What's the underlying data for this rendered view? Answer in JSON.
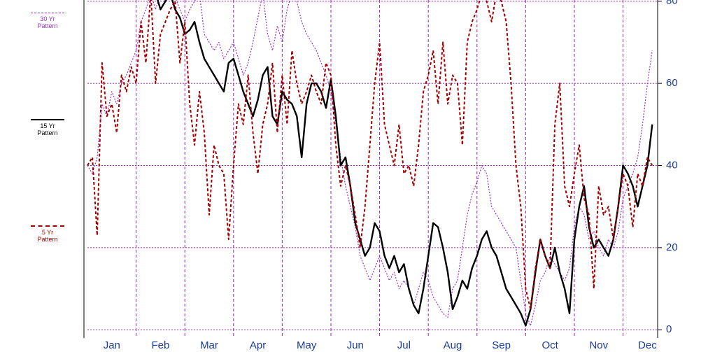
{
  "chart_data": {
    "type": "line",
    "x": [
      0,
      0.1,
      0.2,
      0.3,
      0.4,
      0.5,
      0.6,
      0.7,
      0.8,
      0.9,
      1,
      1.1,
      1.2,
      1.3,
      1.4,
      1.5,
      1.6,
      1.7,
      1.8,
      1.9,
      2,
      2.1,
      2.2,
      2.3,
      2.4,
      2.5,
      2.6,
      2.7,
      2.8,
      2.9,
      3,
      3.1,
      3.2,
      3.3,
      3.4,
      3.5,
      3.6,
      3.7,
      3.8,
      3.9,
      4,
      4.1,
      4.2,
      4.3,
      4.4,
      4.5,
      4.6,
      4.7,
      4.8,
      4.9,
      5,
      5.1,
      5.2,
      5.3,
      5.4,
      5.5,
      5.6,
      5.7,
      5.8,
      5.9,
      6,
      6.1,
      6.2,
      6.3,
      6.4,
      6.5,
      6.6,
      6.7,
      6.8,
      6.9,
      7,
      7.1,
      7.2,
      7.3,
      7.4,
      7.5,
      7.6,
      7.7,
      7.8,
      7.9,
      8,
      8.1,
      8.2,
      8.3,
      8.4,
      8.5,
      8.6,
      8.7,
      8.8,
      8.9,
      9,
      9.1,
      9.2,
      9.3,
      9.4,
      9.5,
      9.6,
      9.7,
      9.8,
      9.9,
      10,
      10.1,
      10.2,
      10.3,
      10.4,
      10.5,
      10.6,
      10.7,
      10.8,
      10.9,
      11,
      11.1,
      11.2,
      11.3,
      11.4,
      11.5,
      11.6
    ],
    "series": [
      {
        "name": "30 Yr Pattern",
        "color": "#9b30c8",
        "dash": "2,2",
        "width": 1.2,
        "values": [
          40,
          38,
          42,
          55,
          52,
          58,
          55,
          60,
          62,
          65,
          68,
          75,
          78,
          82,
          78,
          82,
          80,
          82,
          81,
          78,
          75,
          78,
          80,
          82,
          72,
          70,
          68,
          70,
          66,
          68,
          70,
          66,
          62,
          65,
          70,
          76,
          82,
          72,
          68,
          74,
          70,
          78,
          82,
          80,
          75,
          72,
          70,
          68,
          65,
          62,
          58,
          50,
          42,
          35,
          30,
          25,
          18,
          15,
          12,
          15,
          18,
          15,
          12,
          14,
          10,
          12,
          10,
          6,
          10,
          14,
          12,
          8,
          6,
          4,
          3,
          10,
          12,
          20,
          28,
          33,
          36,
          40,
          38,
          30,
          28,
          26,
          24,
          22,
          20,
          12,
          4,
          1,
          6,
          12,
          14,
          18,
          16,
          14,
          12,
          15,
          25,
          30,
          28,
          22,
          24,
          20,
          18,
          22,
          20,
          24,
          32,
          35,
          38,
          42,
          50,
          60,
          68
        ]
      },
      {
        "name": "15 Yr Pattern",
        "color": "#000000",
        "dash": "none",
        "width": 2.4,
        "values": [
          null,
          null,
          null,
          null,
          null,
          null,
          null,
          null,
          null,
          null,
          null,
          null,
          null,
          null,
          82,
          78,
          80,
          82,
          78,
          76,
          72,
          73,
          75,
          70,
          66,
          64,
          62,
          60,
          58,
          65,
          66,
          62,
          58,
          55,
          52,
          56,
          62,
          64,
          52,
          50,
          58,
          56,
          55,
          52,
          42,
          55,
          60,
          60,
          58,
          54,
          61,
          52,
          40,
          42,
          35,
          26,
          22,
          18,
          20,
          26,
          24,
          18,
          15,
          18,
          14,
          16,
          10,
          6,
          4,
          10,
          18,
          26,
          25,
          20,
          14,
          5,
          8,
          12,
          10,
          15,
          18,
          22,
          24,
          20,
          18,
          14,
          10,
          8,
          6,
          4,
          1,
          5,
          14,
          22,
          18,
          15,
          20,
          14,
          10,
          4,
          22,
          30,
          35,
          25,
          20,
          22,
          20,
          18,
          22,
          30,
          40,
          38,
          35,
          30,
          35,
          40,
          50
        ]
      },
      {
        "name": "5 Yr Pattern",
        "color": "#a00000",
        "dash": "4,3",
        "width": 2,
        "values": [
          40,
          42,
          23,
          65,
          52,
          55,
          48,
          62,
          58,
          64,
          60,
          75,
          65,
          82,
          60,
          72,
          75,
          78,
          80,
          65,
          75,
          55,
          45,
          58,
          48,
          28,
          45,
          40,
          38,
          22,
          40,
          55,
          50,
          62,
          48,
          38,
          50,
          55,
          65,
          48,
          62,
          50,
          68,
          60,
          55,
          58,
          62,
          58,
          55,
          65,
          62,
          45,
          35,
          40,
          35,
          28,
          20,
          30,
          45,
          60,
          70,
          50,
          45,
          40,
          50,
          38,
          40,
          35,
          45,
          58,
          62,
          68,
          55,
          70,
          55,
          62,
          60,
          45,
          70,
          75,
          78,
          82,
          80,
          75,
          82,
          80,
          75,
          60,
          40,
          30,
          10,
          5,
          15,
          22,
          18,
          15,
          50,
          60,
          35,
          30,
          38,
          45,
          32,
          28,
          10,
          35,
          28,
          30,
          22,
          30,
          38,
          35,
          25,
          38,
          35,
          42,
          40
        ]
      }
    ],
    "xlim": [
      0,
      11.71
    ],
    "xticks": [
      {
        "value": 0.5,
        "label": "Jan"
      },
      {
        "value": 1.5,
        "label": "Feb"
      },
      {
        "value": 2.5,
        "label": "Mar"
      },
      {
        "value": 3.5,
        "label": "Apr"
      },
      {
        "value": 4.5,
        "label": "May"
      },
      {
        "value": 5.5,
        "label": "Jun"
      },
      {
        "value": 6.5,
        "label": "Jul"
      },
      {
        "value": 7.5,
        "label": "Aug"
      },
      {
        "value": 8.5,
        "label": "Sep"
      },
      {
        "value": 9.5,
        "label": "Oct"
      },
      {
        "value": 10.5,
        "label": "Nov"
      },
      {
        "value": 11.5,
        "label": "Dec"
      }
    ],
    "ylim": [
      -2,
      80.3
    ],
    "yticks": [
      0,
      20,
      40,
      60,
      80
    ],
    "grid": true,
    "grid_color": "#a020c0"
  }
}
